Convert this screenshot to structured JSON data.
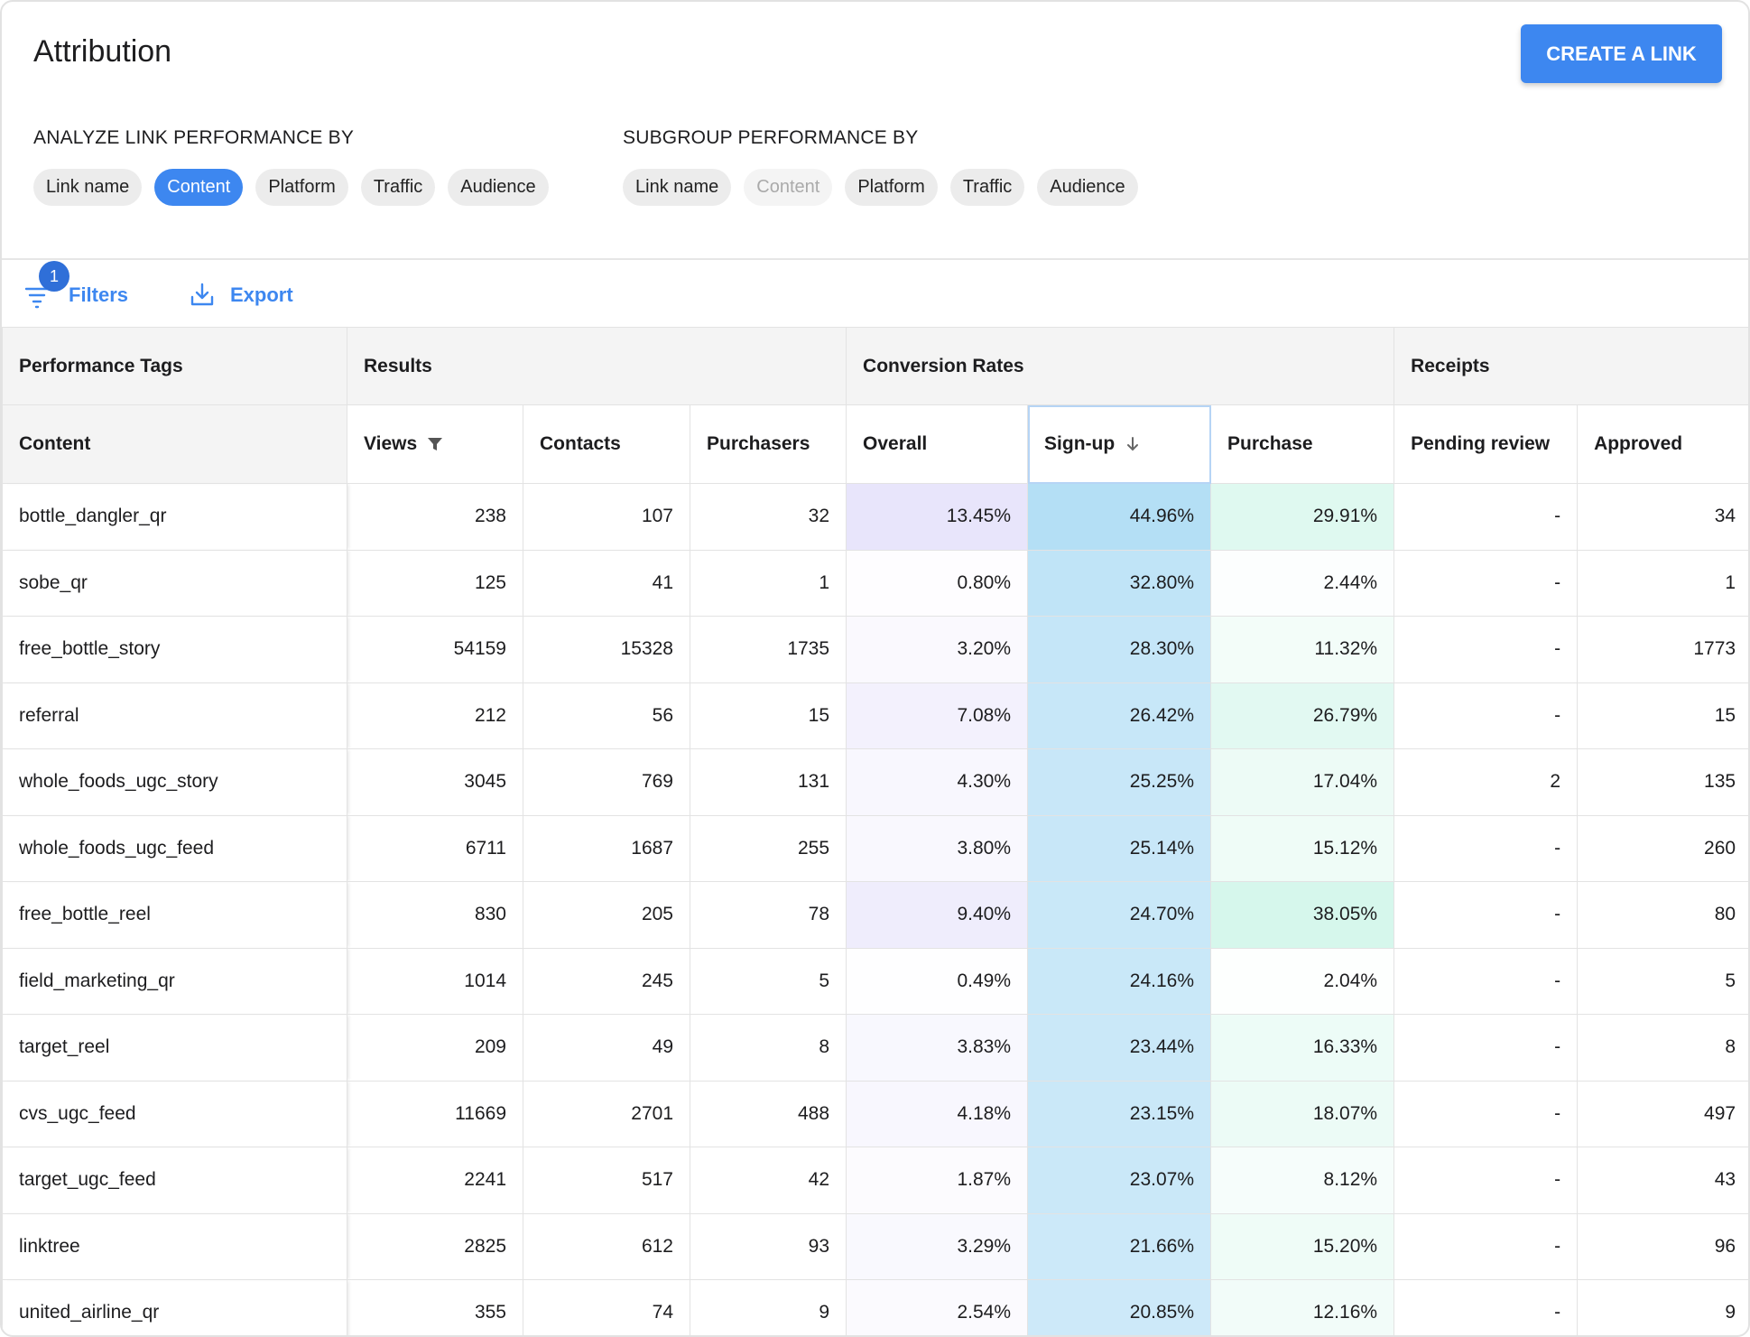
{
  "header": {
    "title": "Attribution",
    "button": "CREATE A LINK"
  },
  "analyze": {
    "label": "ANALYZE LINK PERFORMANCE BY",
    "options": [
      "Link name",
      "Content",
      "Platform",
      "Traffic",
      "Audience"
    ],
    "selected_index": 1
  },
  "subgroup": {
    "label": "SUBGROUP PERFORMANCE BY",
    "options": [
      "Link name",
      "Content",
      "Platform",
      "Traffic",
      "Audience"
    ],
    "disabled_index": 1
  },
  "toolbar": {
    "badge": "1",
    "filters": "Filters",
    "export": "Export"
  },
  "table": {
    "groups": [
      {
        "label": "Performance Tags",
        "span": 1
      },
      {
        "label": "Results",
        "span": 3
      },
      {
        "label": "Conversion Rates",
        "span": 3
      },
      {
        "label": "Receipts",
        "span": 2
      }
    ],
    "columns": [
      "Content",
      "Views",
      "Contacts",
      "Purchasers",
      "Overall",
      "Sign-up",
      "Purchase",
      "Pending review",
      "Approved"
    ],
    "rows": [
      [
        "bottle_dangler_qr",
        238,
        107,
        32,
        "13.45%",
        "44.96%",
        "29.91%",
        "-",
        34
      ],
      [
        "sobe_qr",
        125,
        41,
        1,
        "0.80%",
        "32.80%",
        "2.44%",
        "-",
        1
      ],
      [
        "free_bottle_story",
        54159,
        15328,
        1735,
        "3.20%",
        "28.30%",
        "11.32%",
        "-",
        1773
      ],
      [
        "referral",
        212,
        56,
        15,
        "7.08%",
        "26.42%",
        "26.79%",
        "-",
        15
      ],
      [
        "whole_foods_ugc_story",
        3045,
        769,
        131,
        "4.30%",
        "25.25%",
        "17.04%",
        2,
        135
      ],
      [
        "whole_foods_ugc_feed",
        6711,
        1687,
        255,
        "3.80%",
        "25.14%",
        "15.12%",
        "-",
        260
      ],
      [
        "free_bottle_reel",
        830,
        205,
        78,
        "9.40%",
        "24.70%",
        "38.05%",
        "-",
        80
      ],
      [
        "field_marketing_qr",
        1014,
        245,
        5,
        "0.49%",
        "24.16%",
        "2.04%",
        "-",
        5
      ],
      [
        "target_reel",
        209,
        49,
        8,
        "3.83%",
        "23.44%",
        "16.33%",
        "-",
        8
      ],
      [
        "cvs_ugc_feed",
        11669,
        2701,
        488,
        "4.18%",
        "23.15%",
        "18.07%",
        "-",
        497
      ],
      [
        "target_ugc_feed",
        2241,
        517,
        42,
        "1.87%",
        "23.07%",
        "8.12%",
        "-",
        43
      ],
      [
        "linktree",
        2825,
        612,
        93,
        "3.29%",
        "21.66%",
        "15.20%",
        "-",
        96
      ],
      [
        "united_airline_qr",
        355,
        74,
        9,
        "2.54%",
        "20.85%",
        "12.16%",
        "-",
        9
      ]
    ]
  }
}
